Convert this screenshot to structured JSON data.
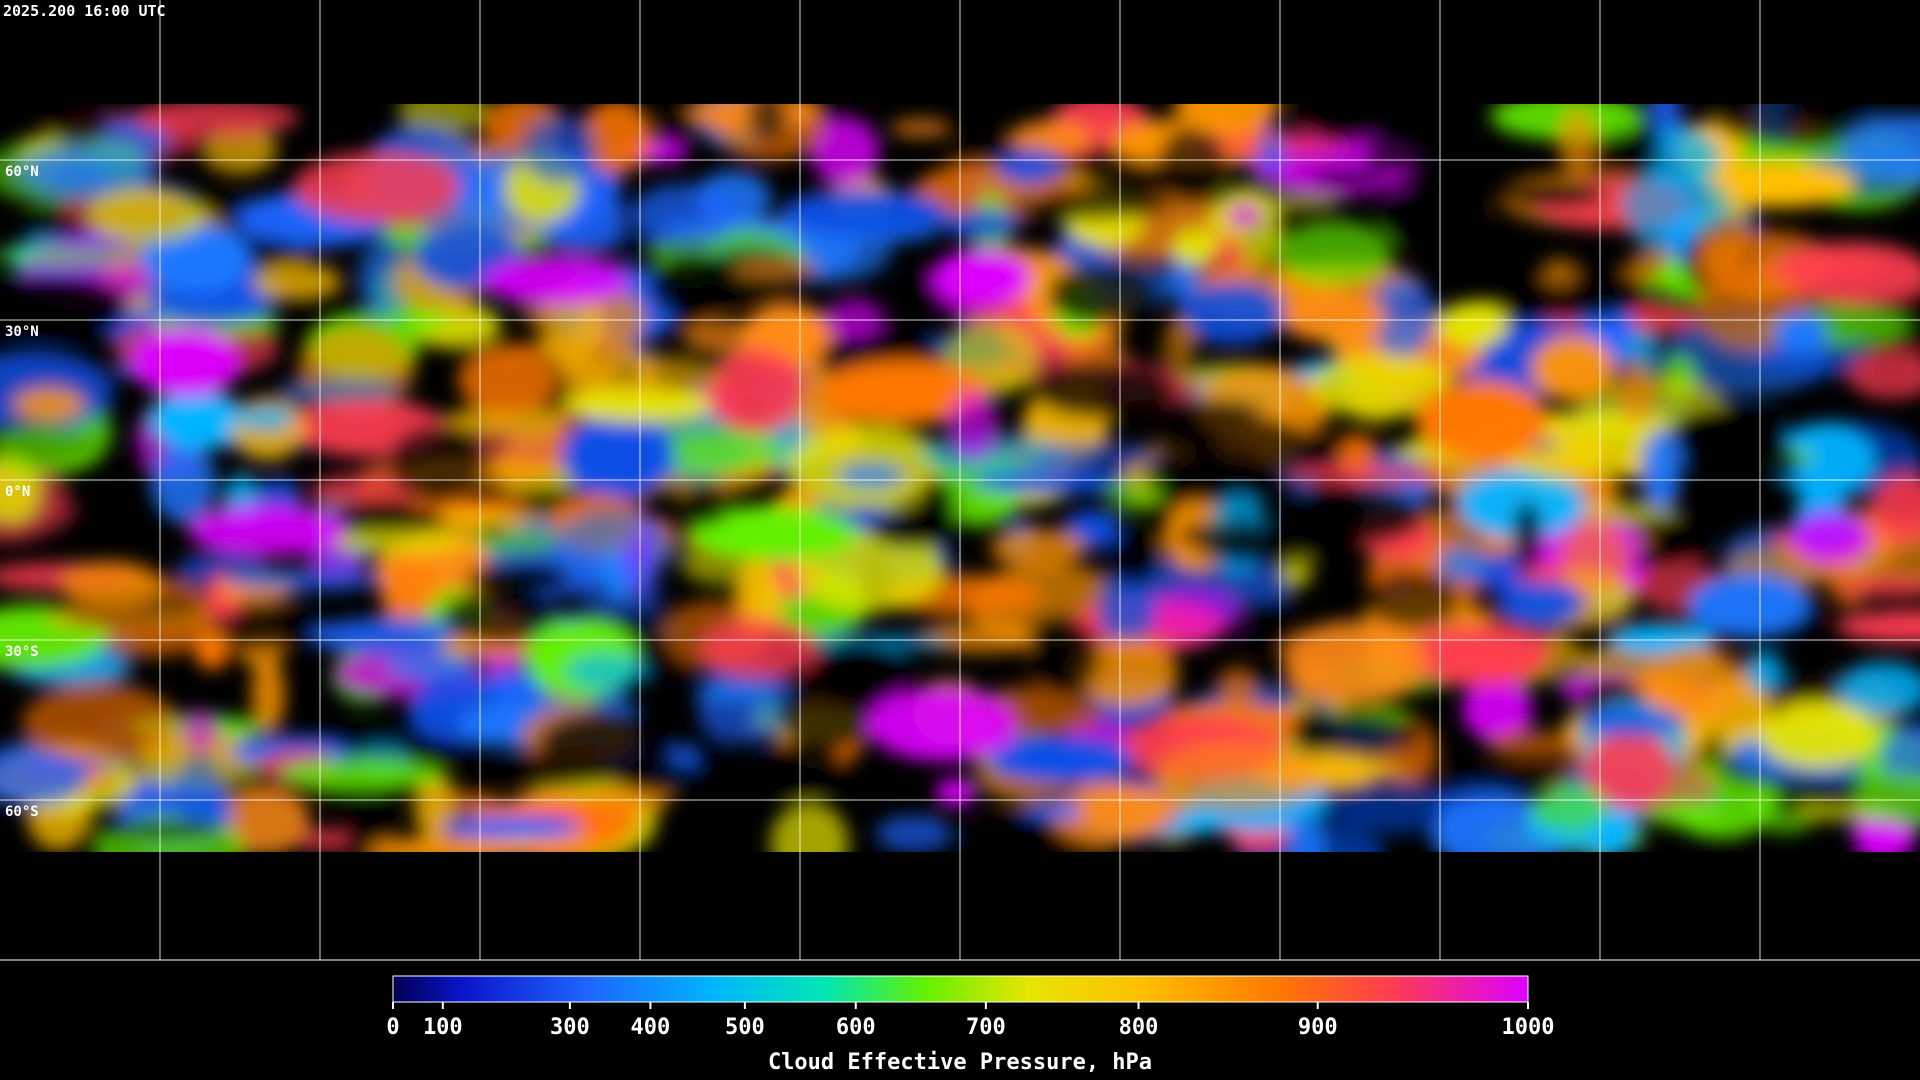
{
  "timestamp": "2025.200 16:00 UTC",
  "lat_labels": [
    "60°N",
    "30°N",
    "0°N",
    "30°S",
    "60°S"
  ],
  "colorbar": {
    "title": "Cloud Effective Pressure, hPa",
    "lim": [
      0,
      1000
    ],
    "ticks": [
      0,
      100,
      300,
      400,
      500,
      600,
      700,
      800,
      900,
      1000
    ]
  }
}
